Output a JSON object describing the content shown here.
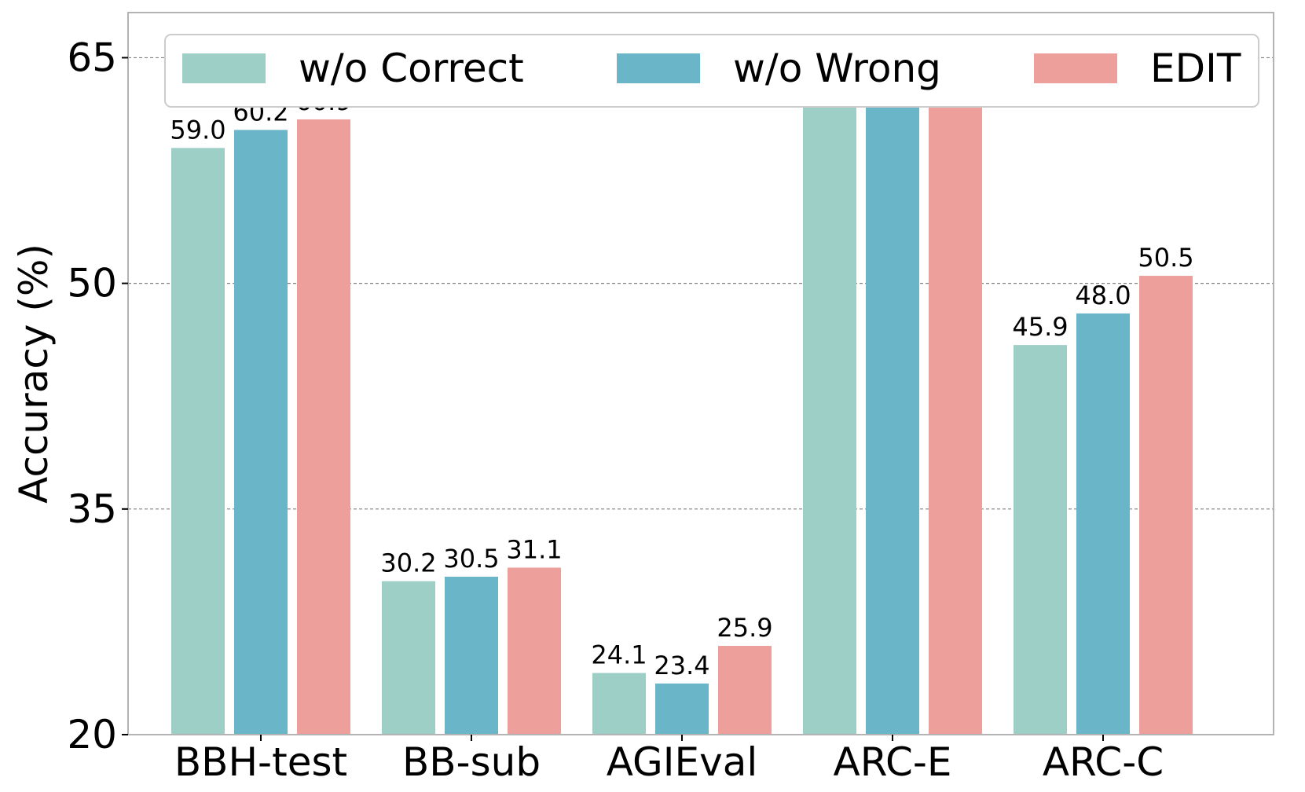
{
  "chart_data": {
    "type": "bar",
    "categories": [
      "BBH-test",
      "BB-sub",
      "AGIEval",
      "ARC-E",
      "ARC-C"
    ],
    "series": [
      {
        "name": "w/o Correct",
        "color": "#9ecfc6",
        "values": [
          59.0,
          30.2,
          24.1,
          62.1,
          45.9
        ]
      },
      {
        "name": "w/o Wrong",
        "color": "#6bb5c9",
        "values": [
          60.2,
          30.5,
          23.4,
          62.7,
          48.0
        ]
      },
      {
        "name": "EDIT",
        "color": "#ec9f9b",
        "values": [
          60.9,
          31.1,
          25.9,
          64.1,
          50.5
        ]
      }
    ],
    "ylabel": "Accuracy (%)",
    "xlabel": "",
    "ylim": [
      20,
      68
    ],
    "yticks": [
      20,
      35,
      50,
      65
    ],
    "grid": true,
    "legend": "top"
  }
}
